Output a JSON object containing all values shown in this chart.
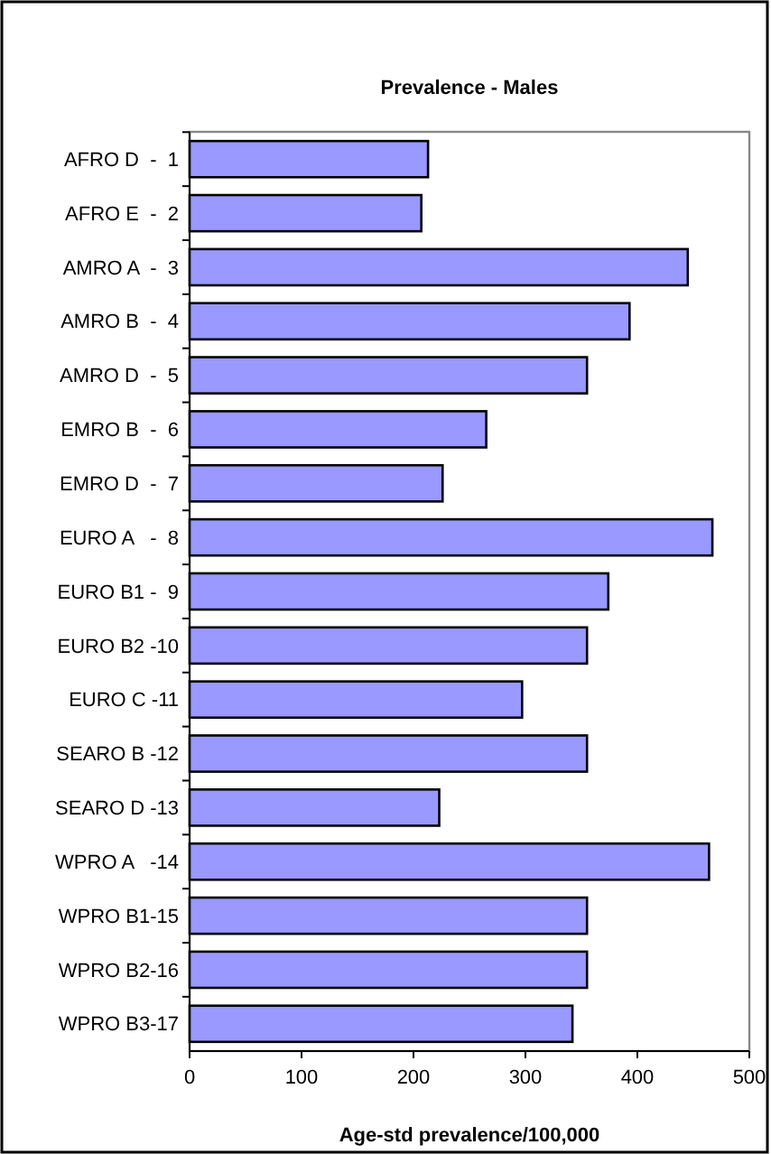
{
  "chart_data": {
    "type": "bar",
    "orientation": "horizontal",
    "title": "Prevalence - Males",
    "xlabel": "Age-std prevalence/100,000",
    "categories": [
      "AFRO D  -  1",
      "AFRO E  -  2",
      "AMRO A  -  3",
      "AMRO B  -  4",
      "AMRO D  -  5",
      "EMRO B  -  6",
      "EMRO D  -  7",
      "EURO A   -  8",
      "EURO B1 -  9",
      "EURO B2 -10",
      "EURO C -11",
      "SEARO B -12",
      "SEARO D -13",
      "WPRO A   -14",
      "WPRO B1-15",
      "WPRO B2-16",
      "WPRO B3-17"
    ],
    "values": [
      213,
      207,
      445,
      393,
      355,
      265,
      226,
      467,
      374,
      355,
      297,
      355,
      223,
      464,
      355,
      355,
      342
    ],
    "color": "#9999ff",
    "xlim": [
      0,
      500
    ],
    "xticks": [
      0,
      100,
      200,
      300,
      400,
      500
    ],
    "grid": false
  }
}
